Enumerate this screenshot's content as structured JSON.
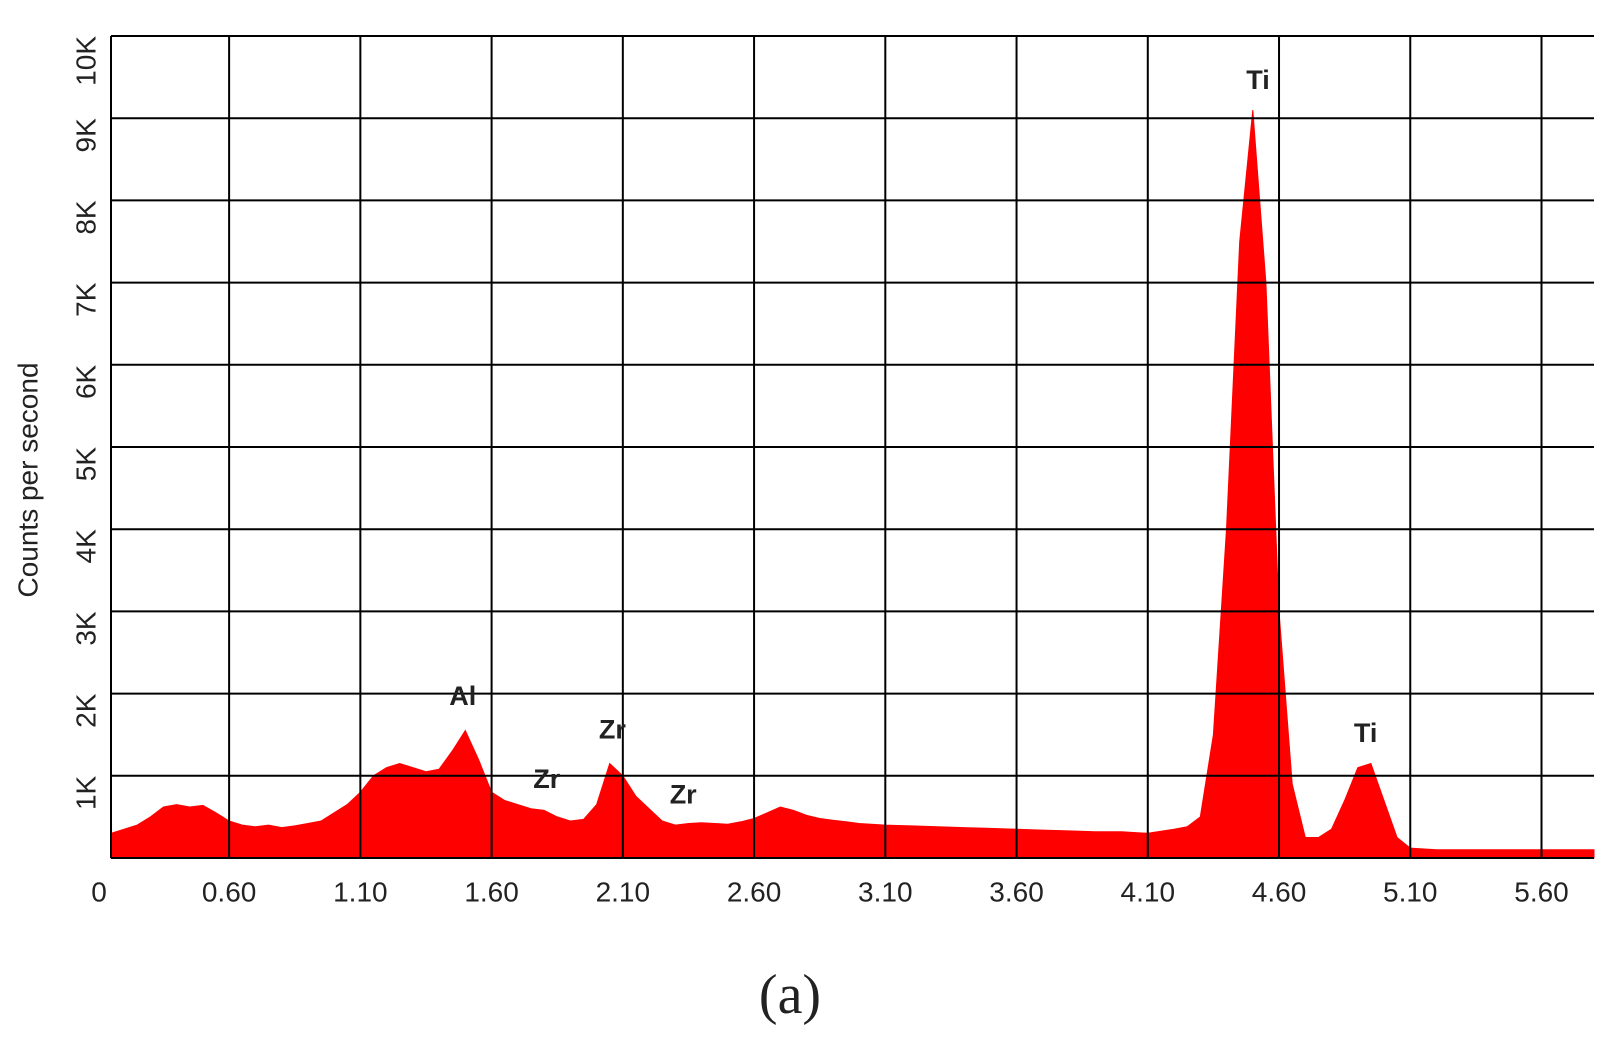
{
  "chart_data": {
    "type": "area",
    "caption": "(a)",
    "y_label": "Counts per second",
    "color": "#ff0000",
    "grid": true,
    "xlim": [
      0.15,
      5.8
    ],
    "ylim": [
      0,
      10000
    ],
    "xticks": [
      {
        "value": 0.15,
        "label": "0"
      },
      {
        "value": 0.6,
        "label": "0.60"
      },
      {
        "value": 1.1,
        "label": "1.10"
      },
      {
        "value": 1.6,
        "label": "1.60"
      },
      {
        "value": 2.1,
        "label": "2.10"
      },
      {
        "value": 2.6,
        "label": "2.60"
      },
      {
        "value": 3.1,
        "label": "3.10"
      },
      {
        "value": 3.6,
        "label": "3.60"
      },
      {
        "value": 4.1,
        "label": "4.10"
      },
      {
        "value": 4.6,
        "label": "4.60"
      },
      {
        "value": 5.1,
        "label": "5.10"
      },
      {
        "value": 5.6,
        "label": "5.60"
      }
    ],
    "yticks": [
      {
        "value": 1000,
        "label": "1K"
      },
      {
        "value": 2000,
        "label": "2K"
      },
      {
        "value": 3000,
        "label": "3K"
      },
      {
        "value": 4000,
        "label": "4K"
      },
      {
        "value": 5000,
        "label": "5K"
      },
      {
        "value": 6000,
        "label": "6K"
      },
      {
        "value": 7000,
        "label": "7K"
      },
      {
        "value": 8000,
        "label": "8K"
      },
      {
        "value": 9000,
        "label": "9K"
      },
      {
        "value": 10000,
        "label": "10K"
      }
    ],
    "x": [
      0.15,
      0.2,
      0.25,
      0.3,
      0.35,
      0.4,
      0.45,
      0.5,
      0.55,
      0.6,
      0.65,
      0.7,
      0.75,
      0.8,
      0.85,
      0.9,
      0.95,
      1.0,
      1.05,
      1.1,
      1.15,
      1.2,
      1.25,
      1.3,
      1.35,
      1.4,
      1.45,
      1.5,
      1.55,
      1.6,
      1.65,
      1.7,
      1.75,
      1.8,
      1.85,
      1.9,
      1.95,
      2.0,
      2.05,
      2.1,
      2.15,
      2.2,
      2.25,
      2.3,
      2.35,
      2.4,
      2.45,
      2.5,
      2.55,
      2.6,
      2.65,
      2.7,
      2.75,
      2.8,
      2.85,
      2.9,
      2.95,
      3.0,
      3.1,
      3.2,
      3.3,
      3.4,
      3.5,
      3.6,
      3.7,
      3.8,
      3.9,
      4.0,
      4.1,
      4.2,
      4.25,
      4.3,
      4.35,
      4.4,
      4.45,
      4.5,
      4.55,
      4.6,
      4.65,
      4.7,
      4.75,
      4.8,
      4.85,
      4.9,
      4.95,
      5.0,
      5.05,
      5.1,
      5.2,
      5.4,
      5.6,
      5.8
    ],
    "values": [
      300,
      350,
      400,
      500,
      620,
      650,
      620,
      640,
      550,
      450,
      400,
      380,
      400,
      370,
      390,
      420,
      450,
      550,
      650,
      800,
      1000,
      1100,
      1150,
      1100,
      1050,
      1080,
      1300,
      1550,
      1200,
      800,
      700,
      650,
      600,
      580,
      500,
      450,
      470,
      650,
      1150,
      1000,
      750,
      600,
      450,
      400,
      420,
      430,
      420,
      410,
      440,
      480,
      550,
      620,
      580,
      520,
      480,
      460,
      440,
      420,
      400,
      390,
      380,
      370,
      360,
      350,
      340,
      330,
      320,
      320,
      300,
      350,
      380,
      500,
      1500,
      4000,
      7500,
      9100,
      7000,
      3000,
      900,
      250,
      250,
      350,
      700,
      1100,
      1150,
      700,
      250,
      120,
      100,
      100,
      100,
      100
    ],
    "annotations": [
      {
        "text": "Al",
        "x": 1.49,
        "y": 1950
      },
      {
        "text": "Zr",
        "x": 1.81,
        "y": 940
      },
      {
        "text": "Zr",
        "x": 2.06,
        "y": 1540
      },
      {
        "text": "Zr",
        "x": 2.33,
        "y": 750
      },
      {
        "text": "Ti",
        "x": 4.52,
        "y": 9440
      },
      {
        "text": "Ti",
        "x": 4.93,
        "y": 1500
      }
    ]
  }
}
